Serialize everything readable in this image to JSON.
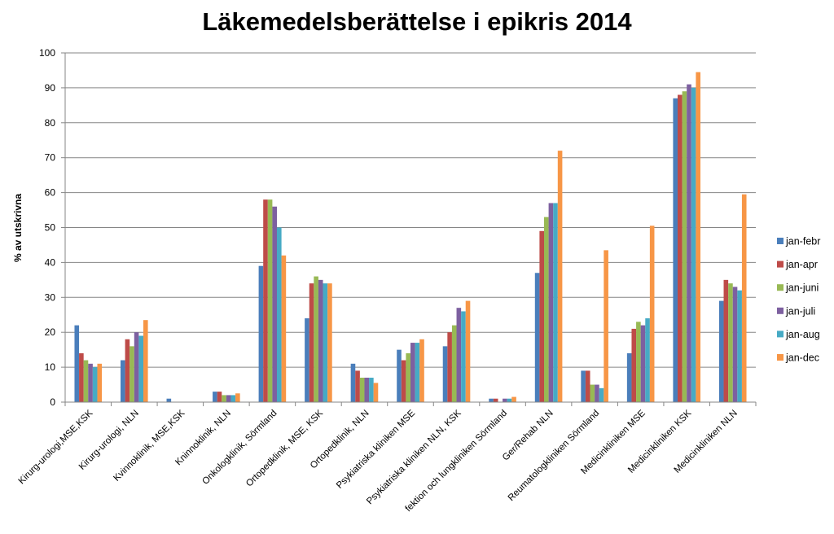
{
  "chart_data": {
    "type": "bar",
    "title": "Läkemedelsberättelse i epikris 2014",
    "xlabel": "",
    "ylabel": "% av utskrivna",
    "ylim": [
      0,
      100
    ],
    "yticks": [
      0,
      10,
      20,
      30,
      40,
      50,
      60,
      70,
      80,
      90,
      100
    ],
    "grid": true,
    "legend_position": "right",
    "categories": [
      "Kirurg-urologi,MSE,KSK",
      "Kirurg-urologi, NLN",
      "Kvinnoklinik, MSE,KSK",
      "Kninnoklinik, NLN",
      "Onkologklinik, Sörmland",
      "Ortopedklinik, MSE, KSK",
      "Ortopedklinik, NLN",
      "Psykiatriska kliniken MSE",
      "Psykiatriska kliniken NLN, KSK",
      "fektion och lungkliniken Sörmland",
      "Ger/Rehab NLN",
      "Reumatologkliniken Sörmland",
      "Medicinkliniken MSE",
      "Medicinkliniken KSK",
      "Medicinkliniken NLN"
    ],
    "series": [
      {
        "name": "jan-febr",
        "color": "#4a7ebb",
        "values": [
          22,
          12,
          1,
          3,
          39,
          24,
          11,
          15,
          16,
          1,
          37,
          9,
          14,
          87,
          29
        ]
      },
      {
        "name": "jan-apr",
        "color": "#be4b48",
        "values": [
          14,
          18,
          0,
          3,
          58,
          34,
          9,
          12,
          20,
          1,
          49,
          9,
          21,
          88,
          35
        ]
      },
      {
        "name": "jan-juni",
        "color": "#98b954",
        "values": [
          12,
          16,
          0,
          2,
          58,
          36,
          7,
          14,
          22,
          0,
          53,
          5,
          23,
          89,
          34
        ]
      },
      {
        "name": "jan-juli",
        "color": "#7d60a0",
        "values": [
          11,
          20,
          0,
          2,
          56,
          35,
          7,
          17,
          27,
          1,
          57,
          5,
          22,
          91,
          33
        ]
      },
      {
        "name": "jan-aug",
        "color": "#46aac5",
        "values": [
          10,
          19,
          0,
          2,
          50,
          34,
          7,
          17,
          26,
          1,
          57,
          4,
          24,
          90,
          32
        ]
      },
      {
        "name": "jan-dec",
        "color": "#f79646",
        "values": [
          11,
          23.5,
          0,
          2.5,
          42,
          34,
          5.5,
          18,
          29,
          1.5,
          72,
          43.5,
          50.5,
          94.5,
          59.5
        ]
      }
    ]
  }
}
